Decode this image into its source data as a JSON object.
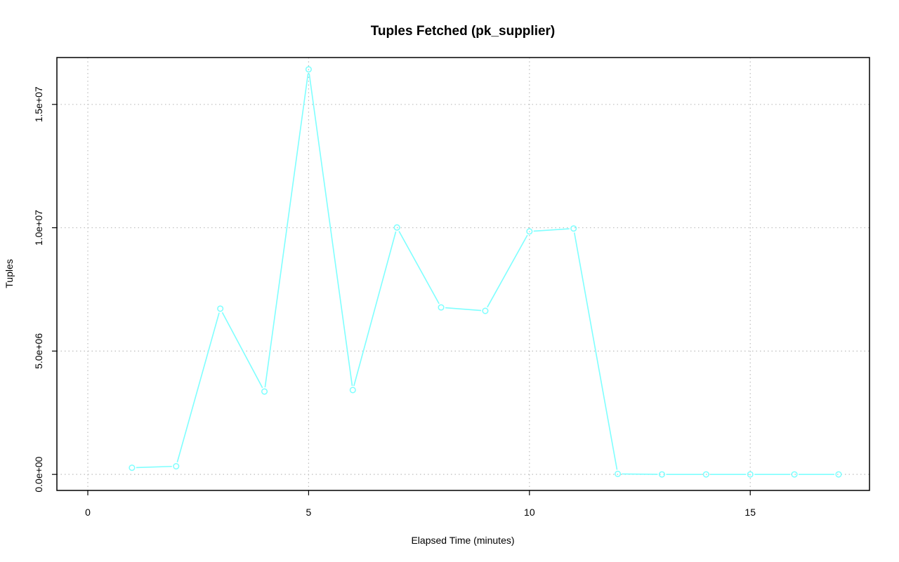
{
  "chart_data": {
    "type": "line",
    "title": "Tuples Fetched (pk_supplier)",
    "xlabel": "Elapsed Time (minutes)",
    "ylabel": "Tuples",
    "xlim": [
      -0.7,
      17.7
    ],
    "ylim": [
      -650000,
      16900000
    ],
    "x_ticks": [
      0,
      5,
      10,
      15
    ],
    "x_tick_labels": [
      "0",
      "5",
      "10",
      "15"
    ],
    "y_ticks": [
      0,
      5000000,
      10000000,
      15000000
    ],
    "y_tick_labels": [
      "0.0e+00",
      "5.0e+06",
      "1.0e+07",
      "1.5e+07"
    ],
    "grid": true,
    "color": "#7fffff",
    "x": [
      1,
      2,
      3,
      4,
      5,
      6,
      7,
      8,
      9,
      10,
      11,
      12,
      13,
      14,
      15,
      16,
      17
    ],
    "y": [
      270000,
      330000,
      6720000,
      3360000,
      16420000,
      3420000,
      10010000,
      6770000,
      6630000,
      9850000,
      9970000,
      20000,
      0,
      0,
      0,
      0,
      0
    ]
  }
}
